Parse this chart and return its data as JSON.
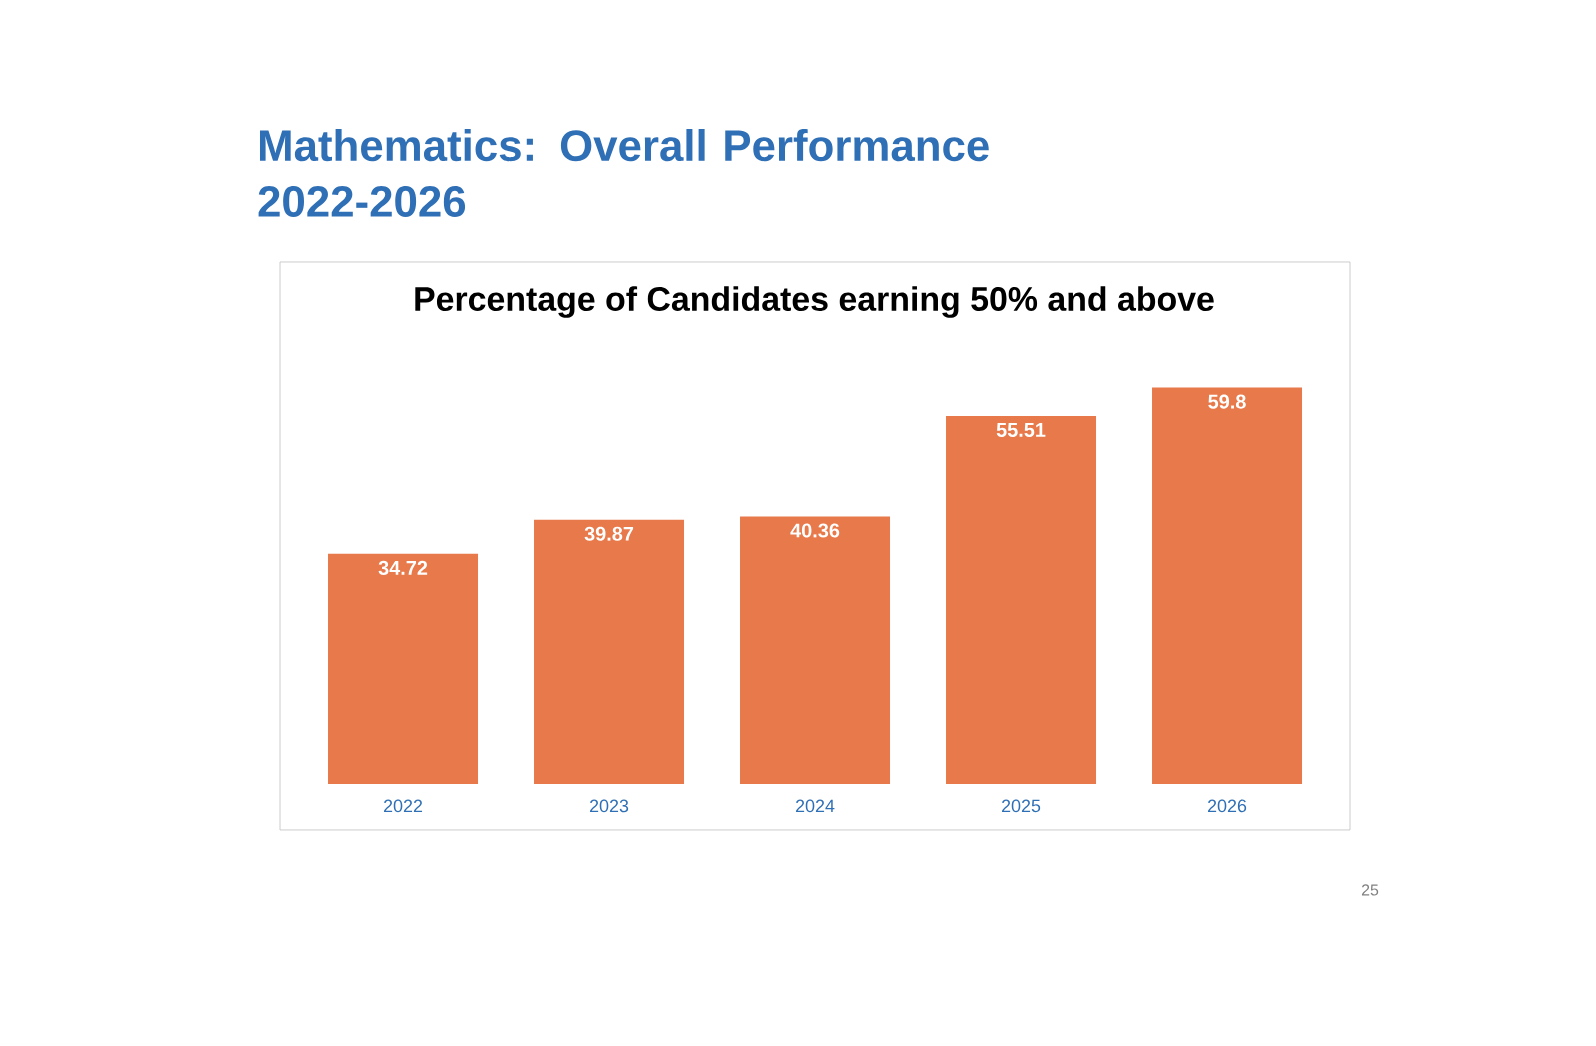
{
  "chart_data": {
    "type": "bar",
    "title": "Mathematics: Overall Performance 2022-2026",
    "subtitle": "Percentage of Candidates earning 50% and above",
    "categories": [
      "2022",
      "2023",
      "2024",
      "2025",
      "2026"
    ],
    "values": [
      34.72,
      39.87,
      40.36,
      55.51,
      59.8
    ],
    "color": "#e8794a",
    "data_labels": true,
    "annotations": [
      "25"
    ]
  }
}
